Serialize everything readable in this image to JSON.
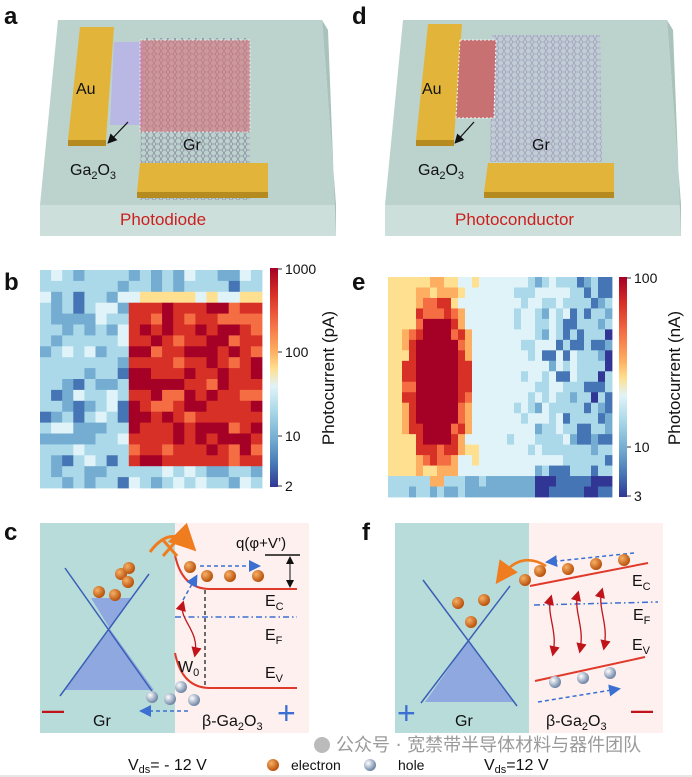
{
  "panel_labels": {
    "a": "a",
    "b": "b",
    "c": "c",
    "d": "d",
    "e": "e",
    "f": "f"
  },
  "formula": {
    "ga": "Ga",
    "two": "2",
    "o": "O",
    "three": "3",
    "beta_prefix": "β-"
  },
  "device_a": {
    "au": "Au",
    "gr": "Gr",
    "title": "Photodiode"
  },
  "device_d": {
    "au": "Au",
    "gr": "Gr",
    "title": "Photoconductor"
  },
  "colors": {
    "au": "#e2b43a",
    "gr_red": "#d9727a",
    "ga2o3_lavender": "#b9b7e4",
    "ga2o3_red": "#c9676a",
    "title_red": "#cc1f1f",
    "teal_bg": "#b8dcda",
    "pink_bg": "#fdf0ef",
    "band_red": "#e03a2a",
    "fermi_blue": "#3b6fd1"
  },
  "chart_data": [
    {
      "type": "heatmap",
      "panel": "b",
      "colorbar_label": "Photocurrent (pA)",
      "scale": "log",
      "range": [
        2,
        1000
      ],
      "ticks": [
        "1000",
        "100",
        "10",
        "2"
      ],
      "colormap": "RdYlBu_r",
      "description_regions": "high values in right block (Gr/Ga2O3 overlap)"
    },
    {
      "type": "heatmap",
      "panel": "e",
      "colorbar_label": "Photocurrent (nA)",
      "scale": "log",
      "range": [
        3,
        100
      ],
      "ticks": [
        "100",
        "10",
        "3"
      ],
      "colormap": "RdYlBu_r",
      "description_regions": "high values in left oval region"
    }
  ],
  "band_c": {
    "q_label": "q(φ+V’)",
    "ec": "E",
    "ec_sub": "C",
    "ef": "E",
    "ef_sub": "F",
    "ev": "E",
    "ev_sub": "V",
    "w0": "W",
    "w0_sub": "0",
    "gr": "Gr",
    "minus": "—",
    "plus": "+"
  },
  "band_f": {
    "ec": "E",
    "ec_sub": "C",
    "ef": "E",
    "ef_sub": "F",
    "ev": "E",
    "ev_sub": "V",
    "gr": "Gr",
    "minus": "—",
    "plus": "+"
  },
  "legend": {
    "vds_c_pre": "V",
    "vds_c_sub": "ds",
    "vds_c_val": "= - 12 V",
    "electron": "electron",
    "hole": "hole",
    "vds_f_pre": "V",
    "vds_f_sub": "ds",
    "vds_f_val": "=12 V"
  },
  "watermark": "公众号 · 宽禁带半导体材料与器件团队"
}
